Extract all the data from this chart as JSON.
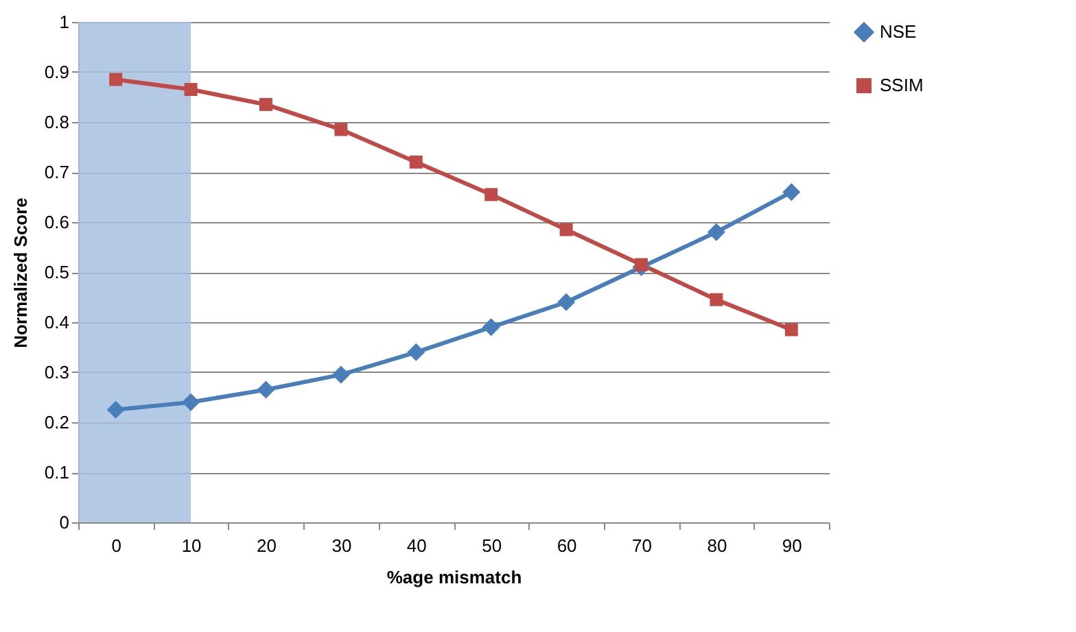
{
  "chart_data": {
    "type": "line",
    "xlabel": "%age mismatch",
    "ylabel": "Normalized Score",
    "categories": [
      "0",
      "10",
      "20",
      "30",
      "40",
      "50",
      "60",
      "70",
      "80",
      "90"
    ],
    "series": [
      {
        "name": "NSE",
        "color": "#4a7ebb",
        "marker": "diamond",
        "values": [
          0.225,
          0.24,
          0.265,
          0.295,
          0.34,
          0.39,
          0.44,
          0.51,
          0.58,
          0.66
        ]
      },
      {
        "name": "SSIM",
        "color": "#be4b48",
        "marker": "square",
        "values": [
          0.885,
          0.865,
          0.835,
          0.785,
          0.72,
          0.655,
          0.585,
          0.515,
          0.445,
          0.385
        ]
      }
    ],
    "ylim": [
      0,
      1
    ],
    "yticks": [
      0,
      0.1,
      0.2,
      0.3,
      0.4,
      0.5,
      0.6,
      0.7,
      0.8,
      0.9,
      1
    ],
    "bands": [
      {
        "axis": "x",
        "from": "0",
        "to": "10",
        "color": "#a7bfde"
      }
    ],
    "grid": "y",
    "legend": "right",
    "line_style": "solid"
  }
}
